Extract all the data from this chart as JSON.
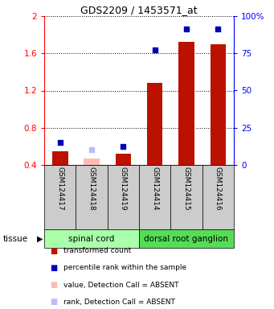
{
  "title": "GDS2209 / 1453571_at",
  "samples": [
    "GSM124417",
    "GSM124418",
    "GSM124419",
    "GSM124414",
    "GSM124415",
    "GSM124416"
  ],
  "groups": [
    {
      "name": "spinal cord",
      "indices": [
        0,
        1,
        2
      ]
    },
    {
      "name": "dorsal root ganglion",
      "indices": [
        3,
        4,
        5
      ]
    }
  ],
  "red_values": [
    0.55,
    0.47,
    0.52,
    1.28,
    1.72,
    1.7
  ],
  "blue_values": [
    0.64,
    0.565,
    0.595,
    1.64,
    1.86,
    1.86
  ],
  "absent_mask": [
    false,
    true,
    false,
    false,
    false,
    false
  ],
  "ylim_left": [
    0.4,
    2.0
  ],
  "yticks_left": [
    0.4,
    0.8,
    1.2,
    1.6,
    2.0
  ],
  "ytick_labels_left": [
    "0.4",
    "0.8",
    "1.2",
    "1.6",
    "2"
  ],
  "yticks_right": [
    0,
    25,
    50,
    75,
    100
  ],
  "right_tick_labels": [
    "0",
    "25",
    "50",
    "75",
    "100%"
  ],
  "bar_color_present": "#bb1100",
  "bar_color_absent": "#ffbbbb",
  "dot_color_present": "#0000bb",
  "dot_color_absent": "#bbbbff",
  "group_row_color_light": "#aaffaa",
  "group_row_color_dark": "#55dd55",
  "sample_row_color": "#cccccc",
  "tissue_label": "tissue",
  "legend_items": [
    {
      "label": "transformed count",
      "color": "#bb1100"
    },
    {
      "label": "percentile rank within the sample",
      "color": "#0000bb"
    },
    {
      "label": "value, Detection Call = ABSENT",
      "color": "#ffbbbb"
    },
    {
      "label": "rank, Detection Call = ABSENT",
      "color": "#bbbbff"
    }
  ],
  "bar_width": 0.5,
  "base_value": 0.4
}
